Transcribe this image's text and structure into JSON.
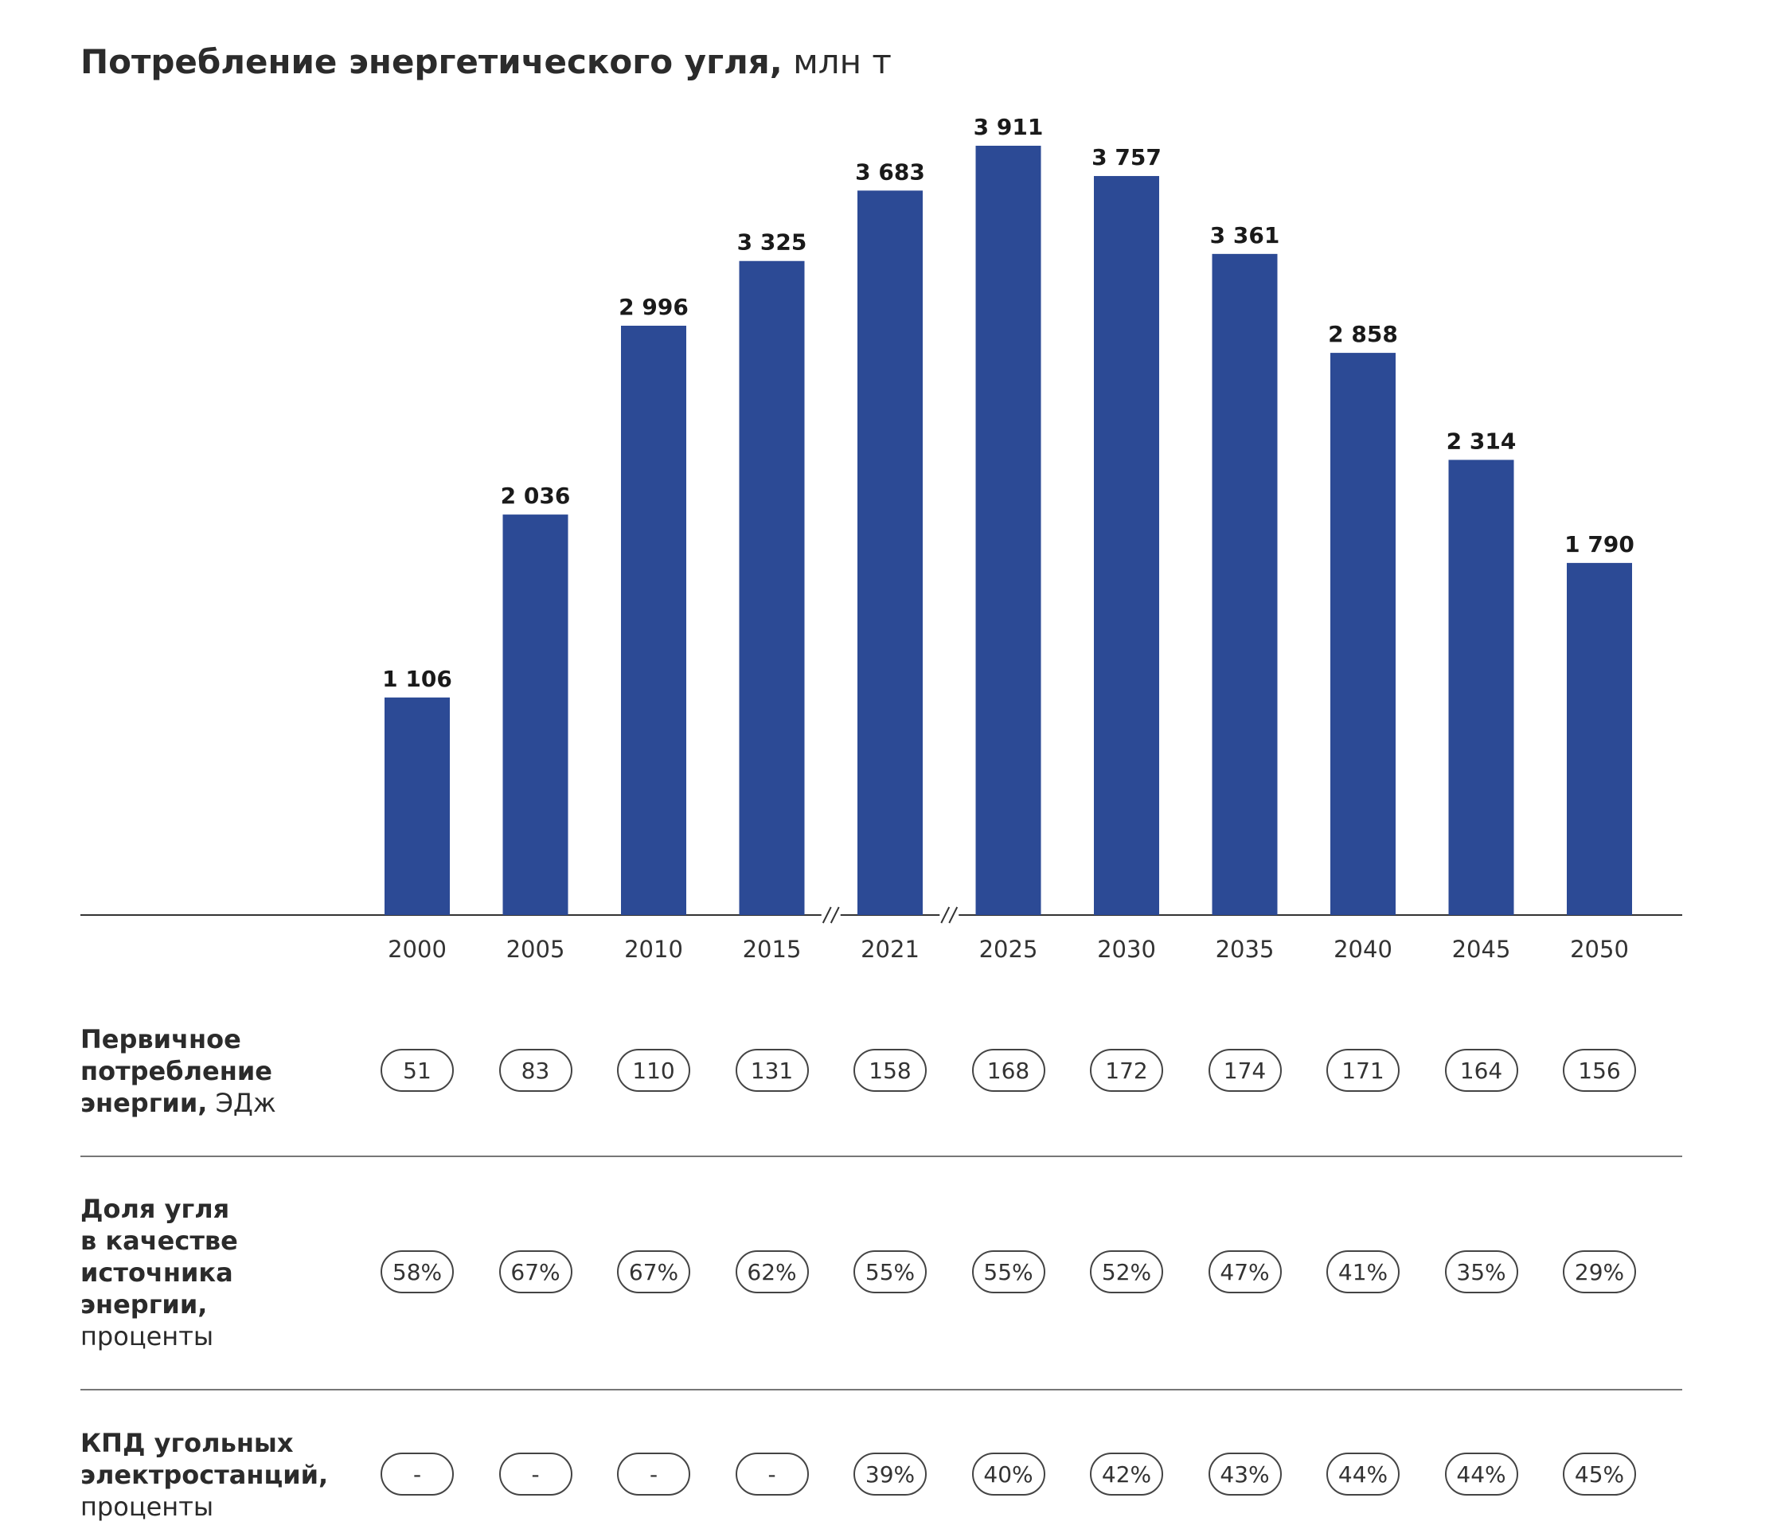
{
  "chart_data": {
    "type": "bar",
    "title": "Потребление энергетического угля,",
    "unit": "млн т",
    "categories": [
      "2000",
      "2005",
      "2010",
      "2015",
      "2021",
      "2025",
      "2030",
      "2035",
      "2040",
      "2045",
      "2050"
    ],
    "values": [
      1106,
      2036,
      2996,
      3325,
      3683,
      3911,
      3757,
      3361,
      2858,
      2314,
      1790
    ],
    "value_labels": [
      "1 106",
      "2 036",
      "2 996",
      "3 325",
      "3 683",
      "3 911",
      "3 757",
      "3 361",
      "2 858",
      "2 314",
      "1 790"
    ],
    "ylim": [
      0,
      4000
    ],
    "axis_break_after": [
      "2015",
      "2021"
    ],
    "bar_color": "#2c4a95",
    "grid": false
  },
  "table": {
    "rows": [
      {
        "label_bold": [
          "Первичное",
          "потребление",
          "энергии,"
        ],
        "label_unit": "ЭДж",
        "values": [
          "51",
          "83",
          "110",
          "131",
          "158",
          "168",
          "172",
          "174",
          "171",
          "164",
          "156"
        ]
      },
      {
        "label_bold": [
          "Доля угля",
          "в качестве",
          "источника",
          "энергии,"
        ],
        "label_unit": "проценты",
        "values": [
          "58%",
          "67%",
          "67%",
          "62%",
          "55%",
          "55%",
          "52%",
          "47%",
          "41%",
          "35%",
          "29%"
        ]
      },
      {
        "label_bold": [
          "КПД угольных",
          "электростанций,"
        ],
        "label_unit": "проценты",
        "values": [
          "-",
          "-",
          "-",
          "-",
          "39%",
          "40%",
          "42%",
          "43%",
          "44%",
          "44%",
          "45%"
        ]
      }
    ]
  }
}
